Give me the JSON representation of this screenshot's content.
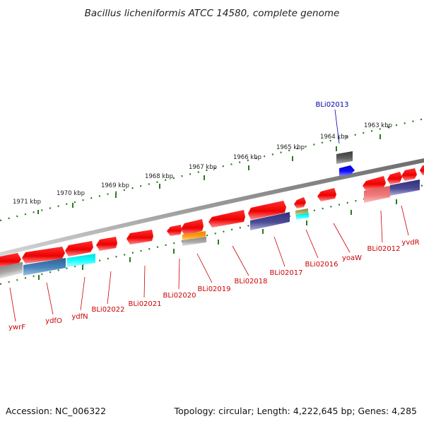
{
  "title": "Bacillus licheniformis ATCC 14580, complete genome",
  "accession": "Accession: NC_006322",
  "summary": "Topology: circular; Length: 4,222,645 bp; Genes: 4,285",
  "colors": {
    "backbone": "#8a8a8a",
    "tick": "#2a7a1e",
    "gene_label": "#cc0000",
    "highlight_label": "#0000aa"
  },
  "tick_labels": [
    "1971 kbp",
    "1970 kbp",
    "1969 kbp",
    "1968 kbp",
    "1967 kbp",
    "1966 kbp",
    "1965 kbp",
    "1964 kbp",
    "1963 kbp"
  ],
  "gene_labels": [
    "ywrF",
    "ydfO",
    "ydfN",
    "BLi02022",
    "BLi02021",
    "BLi02020",
    "BLi02019",
    "BLi02018",
    "BLi02017",
    "BLi02016",
    "yoaW",
    "BLi02012",
    "yvdR"
  ],
  "highlight_label": "BLi02013"
}
